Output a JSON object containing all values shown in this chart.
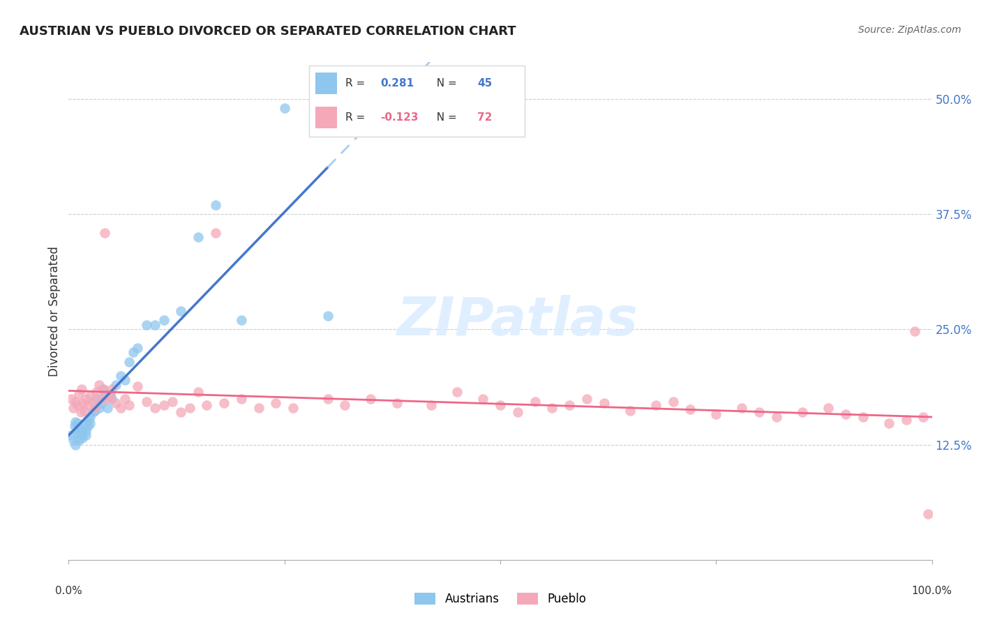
{
  "title": "AUSTRIAN VS PUEBLO DIVORCED OR SEPARATED CORRELATION CHART",
  "source": "Source: ZipAtlas.com",
  "ylabel": "Divorced or Separated",
  "watermark": "ZIPatlas",
  "legend_r_austrians": "0.281",
  "legend_n_austrians": "45",
  "legend_r_pueblo": "-0.123",
  "legend_n_pueblo": "72",
  "legend_label_austrians": "Austrians",
  "legend_label_pueblo": "Pueblo",
  "austrians_color": "#8EC6EE",
  "pueblo_color": "#F4A8B8",
  "austrians_line_color": "#4477CC",
  "pueblo_line_color": "#EE6688",
  "dashed_line_color": "#AACCEE",
  "background_color": "#FFFFFF",
  "grid_color": "#CCCCCC",
  "yticks": [
    0.125,
    0.25,
    0.375,
    0.5
  ],
  "ytick_labels": [
    "12.5%",
    "25.0%",
    "37.5%",
    "50.0%"
  ],
  "xlim": [
    0.0,
    1.0
  ],
  "ylim": [
    0.0,
    0.54
  ],
  "austrians_x": [
    0.003,
    0.005,
    0.007,
    0.008,
    0.008,
    0.009,
    0.01,
    0.01,
    0.012,
    0.013,
    0.015,
    0.015,
    0.016,
    0.018,
    0.02,
    0.02,
    0.022,
    0.022,
    0.025,
    0.025,
    0.028,
    0.03,
    0.032,
    0.035,
    0.038,
    0.04,
    0.042,
    0.045,
    0.048,
    0.05,
    0.055,
    0.06,
    0.065,
    0.07,
    0.075,
    0.08,
    0.09,
    0.1,
    0.11,
    0.13,
    0.15,
    0.17,
    0.2,
    0.25,
    0.3
  ],
  "austrians_y": [
    0.135,
    0.13,
    0.145,
    0.125,
    0.15,
    0.138,
    0.142,
    0.148,
    0.13,
    0.14,
    0.136,
    0.142,
    0.132,
    0.148,
    0.14,
    0.135,
    0.152,
    0.145,
    0.148,
    0.155,
    0.16,
    0.162,
    0.175,
    0.165,
    0.17,
    0.185,
    0.178,
    0.165,
    0.18,
    0.175,
    0.19,
    0.2,
    0.195,
    0.215,
    0.225,
    0.23,
    0.255,
    0.255,
    0.26,
    0.27,
    0.35,
    0.385,
    0.26,
    0.49,
    0.265
  ],
  "pueblo_x": [
    0.003,
    0.005,
    0.008,
    0.01,
    0.012,
    0.014,
    0.015,
    0.016,
    0.018,
    0.02,
    0.022,
    0.025,
    0.028,
    0.03,
    0.032,
    0.035,
    0.038,
    0.04,
    0.042,
    0.045,
    0.048,
    0.05,
    0.055,
    0.06,
    0.065,
    0.07,
    0.08,
    0.09,
    0.1,
    0.11,
    0.12,
    0.13,
    0.14,
    0.15,
    0.16,
    0.17,
    0.18,
    0.2,
    0.22,
    0.24,
    0.26,
    0.3,
    0.32,
    0.35,
    0.38,
    0.42,
    0.45,
    0.48,
    0.5,
    0.52,
    0.54,
    0.56,
    0.58,
    0.6,
    0.62,
    0.65,
    0.68,
    0.7,
    0.72,
    0.75,
    0.78,
    0.8,
    0.82,
    0.85,
    0.88,
    0.9,
    0.92,
    0.95,
    0.97,
    0.98,
    0.99,
    0.995
  ],
  "pueblo_y": [
    0.175,
    0.165,
    0.172,
    0.168,
    0.18,
    0.16,
    0.185,
    0.17,
    0.162,
    0.175,
    0.168,
    0.178,
    0.172,
    0.165,
    0.182,
    0.19,
    0.175,
    0.185,
    0.355,
    0.175,
    0.178,
    0.185,
    0.17,
    0.165,
    0.175,
    0.168,
    0.188,
    0.172,
    0.165,
    0.168,
    0.172,
    0.16,
    0.165,
    0.182,
    0.168,
    0.355,
    0.17,
    0.175,
    0.165,
    0.17,
    0.165,
    0.175,
    0.168,
    0.175,
    0.17,
    0.168,
    0.182,
    0.175,
    0.168,
    0.16,
    0.172,
    0.165,
    0.168,
    0.175,
    0.17,
    0.162,
    0.168,
    0.172,
    0.163,
    0.158,
    0.165,
    0.16,
    0.155,
    0.16,
    0.165,
    0.158,
    0.155,
    0.148,
    0.152,
    0.248,
    0.155,
    0.05
  ]
}
